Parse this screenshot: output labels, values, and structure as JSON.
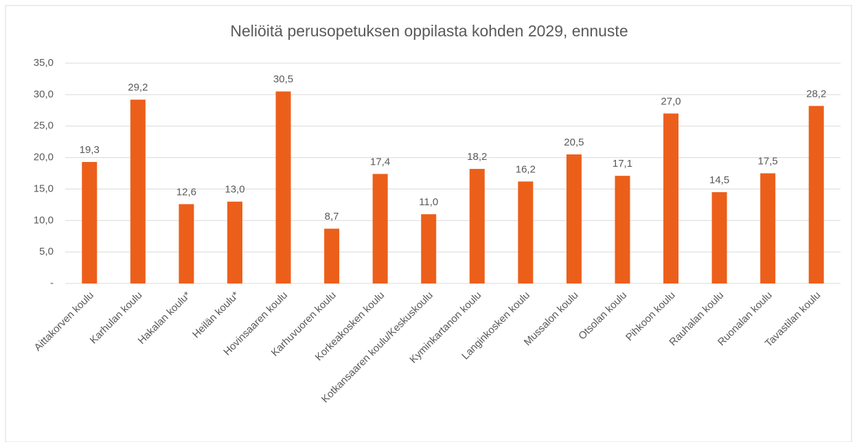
{
  "chart_data": {
    "type": "bar",
    "title": "Neliöitä perusopetuksen oppilasta kohden 2029, ennuste",
    "categories": [
      "Aittakorven koulu",
      "Karhulan koulu",
      "Hakalan koulu*",
      "Heilän koulu*",
      "Hovinsaaren koulu",
      "Karhuvuoren koulu",
      "Korkeakosken koulu",
      "Kotkansaaren koulu/Keskuskoulu",
      "Kyminkartanon koulu",
      "Langinkosken koulu",
      "Mussalon koulu",
      "Otsolan koulu",
      "Pihkoon koulu",
      "Rauhalan koulu",
      "Ruonalan koulu",
      "Tavastilan koulu"
    ],
    "values": [
      19.3,
      29.2,
      12.6,
      13.0,
      30.5,
      8.7,
      17.4,
      11.0,
      18.2,
      16.2,
      20.5,
      17.1,
      27.0,
      14.5,
      17.5,
      28.2
    ],
    "value_labels": [
      "19,3",
      "29,2",
      "12,6",
      "13,0",
      "30,5",
      "8,7",
      "17,4",
      "11,0",
      "18,2",
      "16,2",
      "20,5",
      "17,1",
      "27,0",
      "14,5",
      "17,5",
      "28,2"
    ],
    "color": "#ec5f1b",
    "ylim": [
      0,
      35
    ],
    "yticks": [
      {
        "value": 0,
        "label": "-"
      },
      {
        "value": 5,
        "label": "5,0"
      },
      {
        "value": 10,
        "label": "10,0"
      },
      {
        "value": 15,
        "label": "15,0"
      },
      {
        "value": 20,
        "label": "20,0"
      },
      {
        "value": 25,
        "label": "25,0"
      },
      {
        "value": 30,
        "label": "30,0"
      },
      {
        "value": 35,
        "label": "35,0"
      }
    ],
    "grid": true
  }
}
